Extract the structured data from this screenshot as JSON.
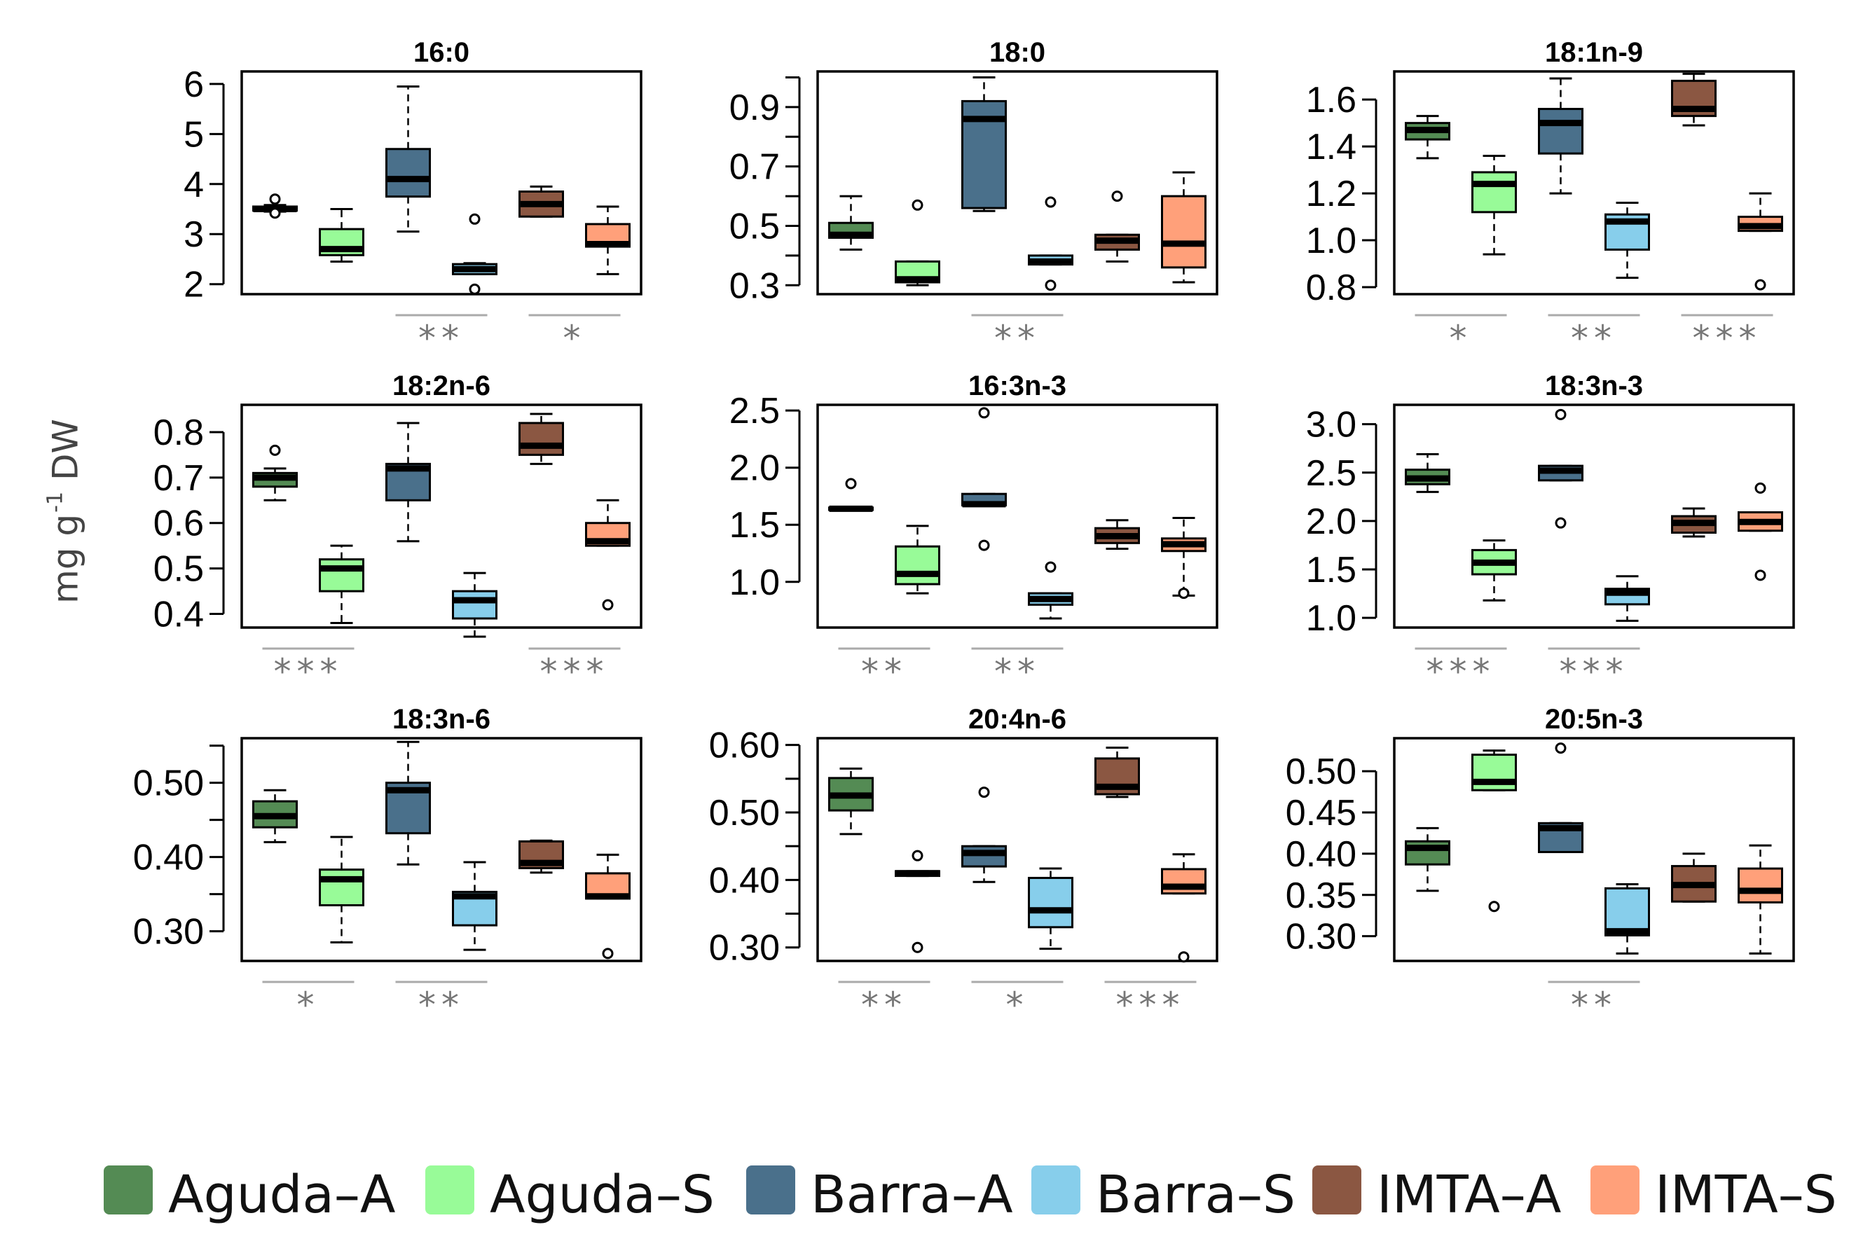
{
  "chart_data": {
    "type": "box",
    "ylabel": "mg g",
    "ylabel_superscript": "-1",
    "ylabel_suffix": "DW",
    "groups": [
      "Aguda–A",
      "Aguda–S",
      "Barra–A",
      "Barra–S",
      "IMTA–A",
      "IMTA–S"
    ],
    "colors": [
      "#548B54",
      "#98FB98",
      "#4A708B",
      "#87CEEB",
      "#8B5742",
      "#FFA07A"
    ],
    "panels": [
      {
        "title": "16:0",
        "ylim": [
          1.8,
          6.25
        ],
        "ticks": [
          2,
          3,
          4,
          5,
          6
        ],
        "tick_labels": [
          "2",
          "3",
          "4",
          "5",
          "6"
        ],
        "boxes": [
          {
            "min": 3.45,
            "q1": 3.47,
            "median": 3.5,
            "q3": 3.55,
            "max": 3.58,
            "outliers": [
              3.42,
              3.7
            ]
          },
          {
            "min": 2.45,
            "q1": 2.58,
            "median": 2.7,
            "q3": 3.1,
            "max": 3.5,
            "outliers": []
          },
          {
            "min": 3.05,
            "q1": 3.75,
            "median": 4.1,
            "q3": 4.7,
            "max": 5.95,
            "outliers": []
          },
          {
            "min": 2.2,
            "q1": 2.2,
            "median": 2.3,
            "q3": 2.4,
            "max": 2.42,
            "outliers": [
              1.9,
              3.3
            ]
          },
          {
            "min": 3.35,
            "q1": 3.35,
            "median": 3.6,
            "q3": 3.85,
            "max": 3.95,
            "outliers": []
          },
          {
            "min": 2.2,
            "q1": 2.75,
            "median": 2.8,
            "q3": 3.2,
            "max": 3.55,
            "outliers": []
          }
        ],
        "significance": [
          {
            "from": 3,
            "to": 4,
            "label": "**"
          },
          {
            "from": 5,
            "to": 6,
            "label": "*"
          }
        ]
      },
      {
        "title": "18:0",
        "ylim": [
          0.27,
          1.02
        ],
        "ticks": [
          0.3,
          0.4,
          0.5,
          0.6,
          0.7,
          0.8,
          0.9,
          1.0
        ],
        "tick_labels": [
          "0.3",
          "",
          "0.5",
          "",
          "0.7",
          "",
          "0.9",
          ""
        ],
        "boxes": [
          {
            "min": 0.42,
            "q1": 0.46,
            "median": 0.47,
            "q3": 0.51,
            "max": 0.6,
            "outliers": []
          },
          {
            "min": 0.3,
            "q1": 0.31,
            "median": 0.32,
            "q3": 0.38,
            "max": 0.38,
            "outliers": [
              0.57
            ]
          },
          {
            "min": 0.55,
            "q1": 0.56,
            "median": 0.86,
            "q3": 0.92,
            "max": 1.0,
            "outliers": []
          },
          {
            "min": 0.37,
            "q1": 0.37,
            "median": 0.38,
            "q3": 0.4,
            "max": 0.4,
            "outliers": [
              0.3,
              0.58
            ]
          },
          {
            "min": 0.38,
            "q1": 0.42,
            "median": 0.45,
            "q3": 0.47,
            "max": 0.47,
            "outliers": [
              0.6
            ]
          },
          {
            "min": 0.31,
            "q1": 0.36,
            "median": 0.44,
            "q3": 0.6,
            "max": 0.68,
            "outliers": []
          }
        ],
        "significance": [
          {
            "from": 3,
            "to": 4,
            "label": "**"
          }
        ]
      },
      {
        "title": "18:1n-9",
        "ylim": [
          0.77,
          1.72
        ],
        "ticks": [
          0.8,
          1.0,
          1.2,
          1.4,
          1.6
        ],
        "tick_labels": [
          "0.8",
          "1.0",
          "1.2",
          "1.4",
          "1.6"
        ],
        "boxes": [
          {
            "min": 1.35,
            "q1": 1.43,
            "median": 1.47,
            "q3": 1.5,
            "max": 1.53,
            "outliers": []
          },
          {
            "min": 0.94,
            "q1": 1.12,
            "median": 1.24,
            "q3": 1.29,
            "max": 1.36,
            "outliers": []
          },
          {
            "min": 1.2,
            "q1": 1.37,
            "median": 1.5,
            "q3": 1.56,
            "max": 1.69,
            "outliers": []
          },
          {
            "min": 0.84,
            "q1": 0.96,
            "median": 1.08,
            "q3": 1.11,
            "max": 1.16,
            "outliers": []
          },
          {
            "min": 1.49,
            "q1": 1.53,
            "median": 1.56,
            "q3": 1.68,
            "max": 1.71,
            "outliers": []
          },
          {
            "min": 1.04,
            "q1": 1.04,
            "median": 1.06,
            "q3": 1.1,
            "max": 1.2,
            "outliers": [
              0.81
            ]
          }
        ],
        "significance": [
          {
            "from": 1,
            "to": 2,
            "label": "*"
          },
          {
            "from": 3,
            "to": 4,
            "label": "**"
          },
          {
            "from": 5,
            "to": 6,
            "label": "***"
          }
        ]
      },
      {
        "title": "18:2n-6",
        "ylim": [
          0.37,
          0.86
        ],
        "ticks": [
          0.4,
          0.5,
          0.6,
          0.7,
          0.8
        ],
        "tick_labels": [
          "0.4",
          "0.5",
          "0.6",
          "0.7",
          "0.8"
        ],
        "boxes": [
          {
            "min": 0.65,
            "q1": 0.68,
            "median": 0.7,
            "q3": 0.71,
            "max": 0.72,
            "outliers": [
              0.76
            ]
          },
          {
            "min": 0.38,
            "q1": 0.45,
            "median": 0.5,
            "q3": 0.52,
            "max": 0.55,
            "outliers": []
          },
          {
            "min": 0.56,
            "q1": 0.65,
            "median": 0.72,
            "q3": 0.73,
            "max": 0.82,
            "outliers": []
          },
          {
            "min": 0.35,
            "q1": 0.39,
            "median": 0.43,
            "q3": 0.45,
            "max": 0.49,
            "outliers": []
          },
          {
            "min": 0.73,
            "q1": 0.75,
            "median": 0.77,
            "q3": 0.82,
            "max": 0.84,
            "outliers": []
          },
          {
            "min": 0.55,
            "q1": 0.55,
            "median": 0.56,
            "q3": 0.6,
            "max": 0.65,
            "outliers": [
              0.42
            ]
          }
        ],
        "significance": [
          {
            "from": 1,
            "to": 2,
            "label": "***"
          },
          {
            "from": 5,
            "to": 6,
            "label": "***"
          }
        ]
      },
      {
        "title": "16:3n-3",
        "ylim": [
          0.6,
          2.55
        ],
        "ticks": [
          1.0,
          1.5,
          2.0,
          2.5
        ],
        "tick_labels": [
          "1.0",
          "1.5",
          "2.0",
          "2.5"
        ],
        "boxes": [
          {
            "min": 1.63,
            "q1": 1.63,
            "median": 1.64,
            "q3": 1.65,
            "max": 1.65,
            "outliers": [
              1.86
            ]
          },
          {
            "min": 0.9,
            "q1": 0.98,
            "median": 1.07,
            "q3": 1.31,
            "max": 1.49,
            "outliers": []
          },
          {
            "min": 1.67,
            "q1": 1.67,
            "median": 1.68,
            "q3": 1.77,
            "max": 1.77,
            "outliers": [
              1.32,
              2.48
            ]
          },
          {
            "min": 0.68,
            "q1": 0.8,
            "median": 0.85,
            "q3": 0.9,
            "max": 0.9,
            "outliers": [
              1.13
            ]
          },
          {
            "min": 1.29,
            "q1": 1.34,
            "median": 1.4,
            "q3": 1.47,
            "max": 1.54,
            "outliers": []
          },
          {
            "min": 0.88,
            "q1": 1.27,
            "median": 1.33,
            "q3": 1.38,
            "max": 1.56,
            "outliers": [
              0.9
            ]
          }
        ],
        "significance": [
          {
            "from": 1,
            "to": 2,
            "label": "**"
          },
          {
            "from": 3,
            "to": 4,
            "label": "**"
          }
        ]
      },
      {
        "title": "18:3n-3",
        "ylim": [
          0.9,
          3.2
        ],
        "ticks": [
          1.0,
          1.5,
          2.0,
          2.5,
          3.0
        ],
        "tick_labels": [
          "1.0",
          "1.5",
          "2.0",
          "2.5",
          "3.0"
        ],
        "boxes": [
          {
            "min": 2.3,
            "q1": 2.38,
            "median": 2.44,
            "q3": 2.53,
            "max": 2.69,
            "outliers": []
          },
          {
            "min": 1.18,
            "q1": 1.45,
            "median": 1.57,
            "q3": 1.7,
            "max": 1.8,
            "outliers": []
          },
          {
            "min": 2.42,
            "q1": 2.42,
            "median": 2.52,
            "q3": 2.57,
            "max": 2.57,
            "outliers": [
              1.98,
              3.1
            ]
          },
          {
            "min": 0.97,
            "q1": 1.14,
            "median": 1.26,
            "q3": 1.3,
            "max": 1.43,
            "outliers": []
          },
          {
            "min": 1.84,
            "q1": 1.88,
            "median": 1.98,
            "q3": 2.05,
            "max": 2.13,
            "outliers": []
          },
          {
            "min": 1.9,
            "q1": 1.9,
            "median": 1.99,
            "q3": 2.09,
            "max": 2.09,
            "outliers": [
              1.44,
              2.34
            ]
          }
        ],
        "significance": [
          {
            "from": 1,
            "to": 2,
            "label": "***"
          },
          {
            "from": 3,
            "to": 4,
            "label": "***"
          }
        ]
      },
      {
        "title": "18:3n-6",
        "ylim": [
          0.26,
          0.56
        ],
        "ticks": [
          0.3,
          0.35,
          0.4,
          0.45,
          0.5,
          0.55
        ],
        "tick_labels": [
          "0.30",
          "",
          "0.40",
          "",
          "0.50",
          ""
        ],
        "boxes": [
          {
            "min": 0.42,
            "q1": 0.44,
            "median": 0.455,
            "q3": 0.475,
            "max": 0.49,
            "outliers": []
          },
          {
            "min": 0.285,
            "q1": 0.335,
            "median": 0.37,
            "q3": 0.383,
            "max": 0.427,
            "outliers": []
          },
          {
            "min": 0.39,
            "q1": 0.432,
            "median": 0.49,
            "q3": 0.5,
            "max": 0.555,
            "outliers": []
          },
          {
            "min": 0.275,
            "q1": 0.308,
            "median": 0.347,
            "q3": 0.353,
            "max": 0.393,
            "outliers": []
          },
          {
            "min": 0.379,
            "q1": 0.385,
            "median": 0.392,
            "q3": 0.421,
            "max": 0.422,
            "outliers": []
          },
          {
            "min": 0.344,
            "q1": 0.344,
            "median": 0.347,
            "q3": 0.378,
            "max": 0.403,
            "outliers": [
              0.27
            ]
          }
        ],
        "significance": [
          {
            "from": 1,
            "to": 2,
            "label": "*"
          },
          {
            "from": 3,
            "to": 4,
            "label": "**"
          }
        ]
      },
      {
        "title": "20:4n-6",
        "ylim": [
          0.28,
          0.61
        ],
        "ticks": [
          0.3,
          0.35,
          0.4,
          0.45,
          0.5,
          0.55,
          0.6
        ],
        "tick_labels": [
          "0.30",
          "",
          "0.40",
          "",
          "0.50",
          "",
          "0.60"
        ],
        "boxes": [
          {
            "min": 0.468,
            "q1": 0.503,
            "median": 0.525,
            "q3": 0.551,
            "max": 0.565,
            "outliers": []
          },
          {
            "min": 0.406,
            "q1": 0.406,
            "median": 0.41,
            "q3": 0.413,
            "max": 0.413,
            "outliers": [
              0.3,
              0.436
            ]
          },
          {
            "min": 0.397,
            "q1": 0.42,
            "median": 0.44,
            "q3": 0.45,
            "max": 0.45,
            "outliers": [
              0.53
            ]
          },
          {
            "min": 0.298,
            "q1": 0.33,
            "median": 0.355,
            "q3": 0.403,
            "max": 0.417,
            "outliers": []
          },
          {
            "min": 0.523,
            "q1": 0.527,
            "median": 0.538,
            "q3": 0.58,
            "max": 0.596,
            "outliers": []
          },
          {
            "min": 0.38,
            "q1": 0.38,
            "median": 0.39,
            "q3": 0.416,
            "max": 0.438,
            "outliers": [
              0.286
            ]
          }
        ],
        "significance": [
          {
            "from": 1,
            "to": 2,
            "label": "**"
          },
          {
            "from": 3,
            "to": 4,
            "label": "*"
          },
          {
            "from": 5,
            "to": 6,
            "label": "***"
          }
        ]
      },
      {
        "title": "20:5n-3",
        "ylim": [
          0.27,
          0.54
        ],
        "ticks": [
          0.3,
          0.35,
          0.4,
          0.45,
          0.5
        ],
        "tick_labels": [
          "0.30",
          "0.35",
          "0.40",
          "0.45",
          "0.50"
        ],
        "boxes": [
          {
            "min": 0.355,
            "q1": 0.387,
            "median": 0.407,
            "q3": 0.415,
            "max": 0.431,
            "outliers": []
          },
          {
            "min": 0.477,
            "q1": 0.477,
            "median": 0.487,
            "q3": 0.52,
            "max": 0.525,
            "outliers": [
              0.336
            ]
          },
          {
            "min": 0.402,
            "q1": 0.402,
            "median": 0.431,
            "q3": 0.437,
            "max": 0.437,
            "outliers": [
              0.528
            ]
          },
          {
            "min": 0.279,
            "q1": 0.301,
            "median": 0.306,
            "q3": 0.358,
            "max": 0.363,
            "outliers": []
          },
          {
            "min": 0.342,
            "q1": 0.342,
            "median": 0.362,
            "q3": 0.385,
            "max": 0.4,
            "outliers": []
          },
          {
            "min": 0.279,
            "q1": 0.341,
            "median": 0.355,
            "q3": 0.382,
            "max": 0.41,
            "outliers": []
          }
        ],
        "significance": [
          {
            "from": 3,
            "to": 4,
            "label": "**"
          }
        ]
      }
    ]
  }
}
